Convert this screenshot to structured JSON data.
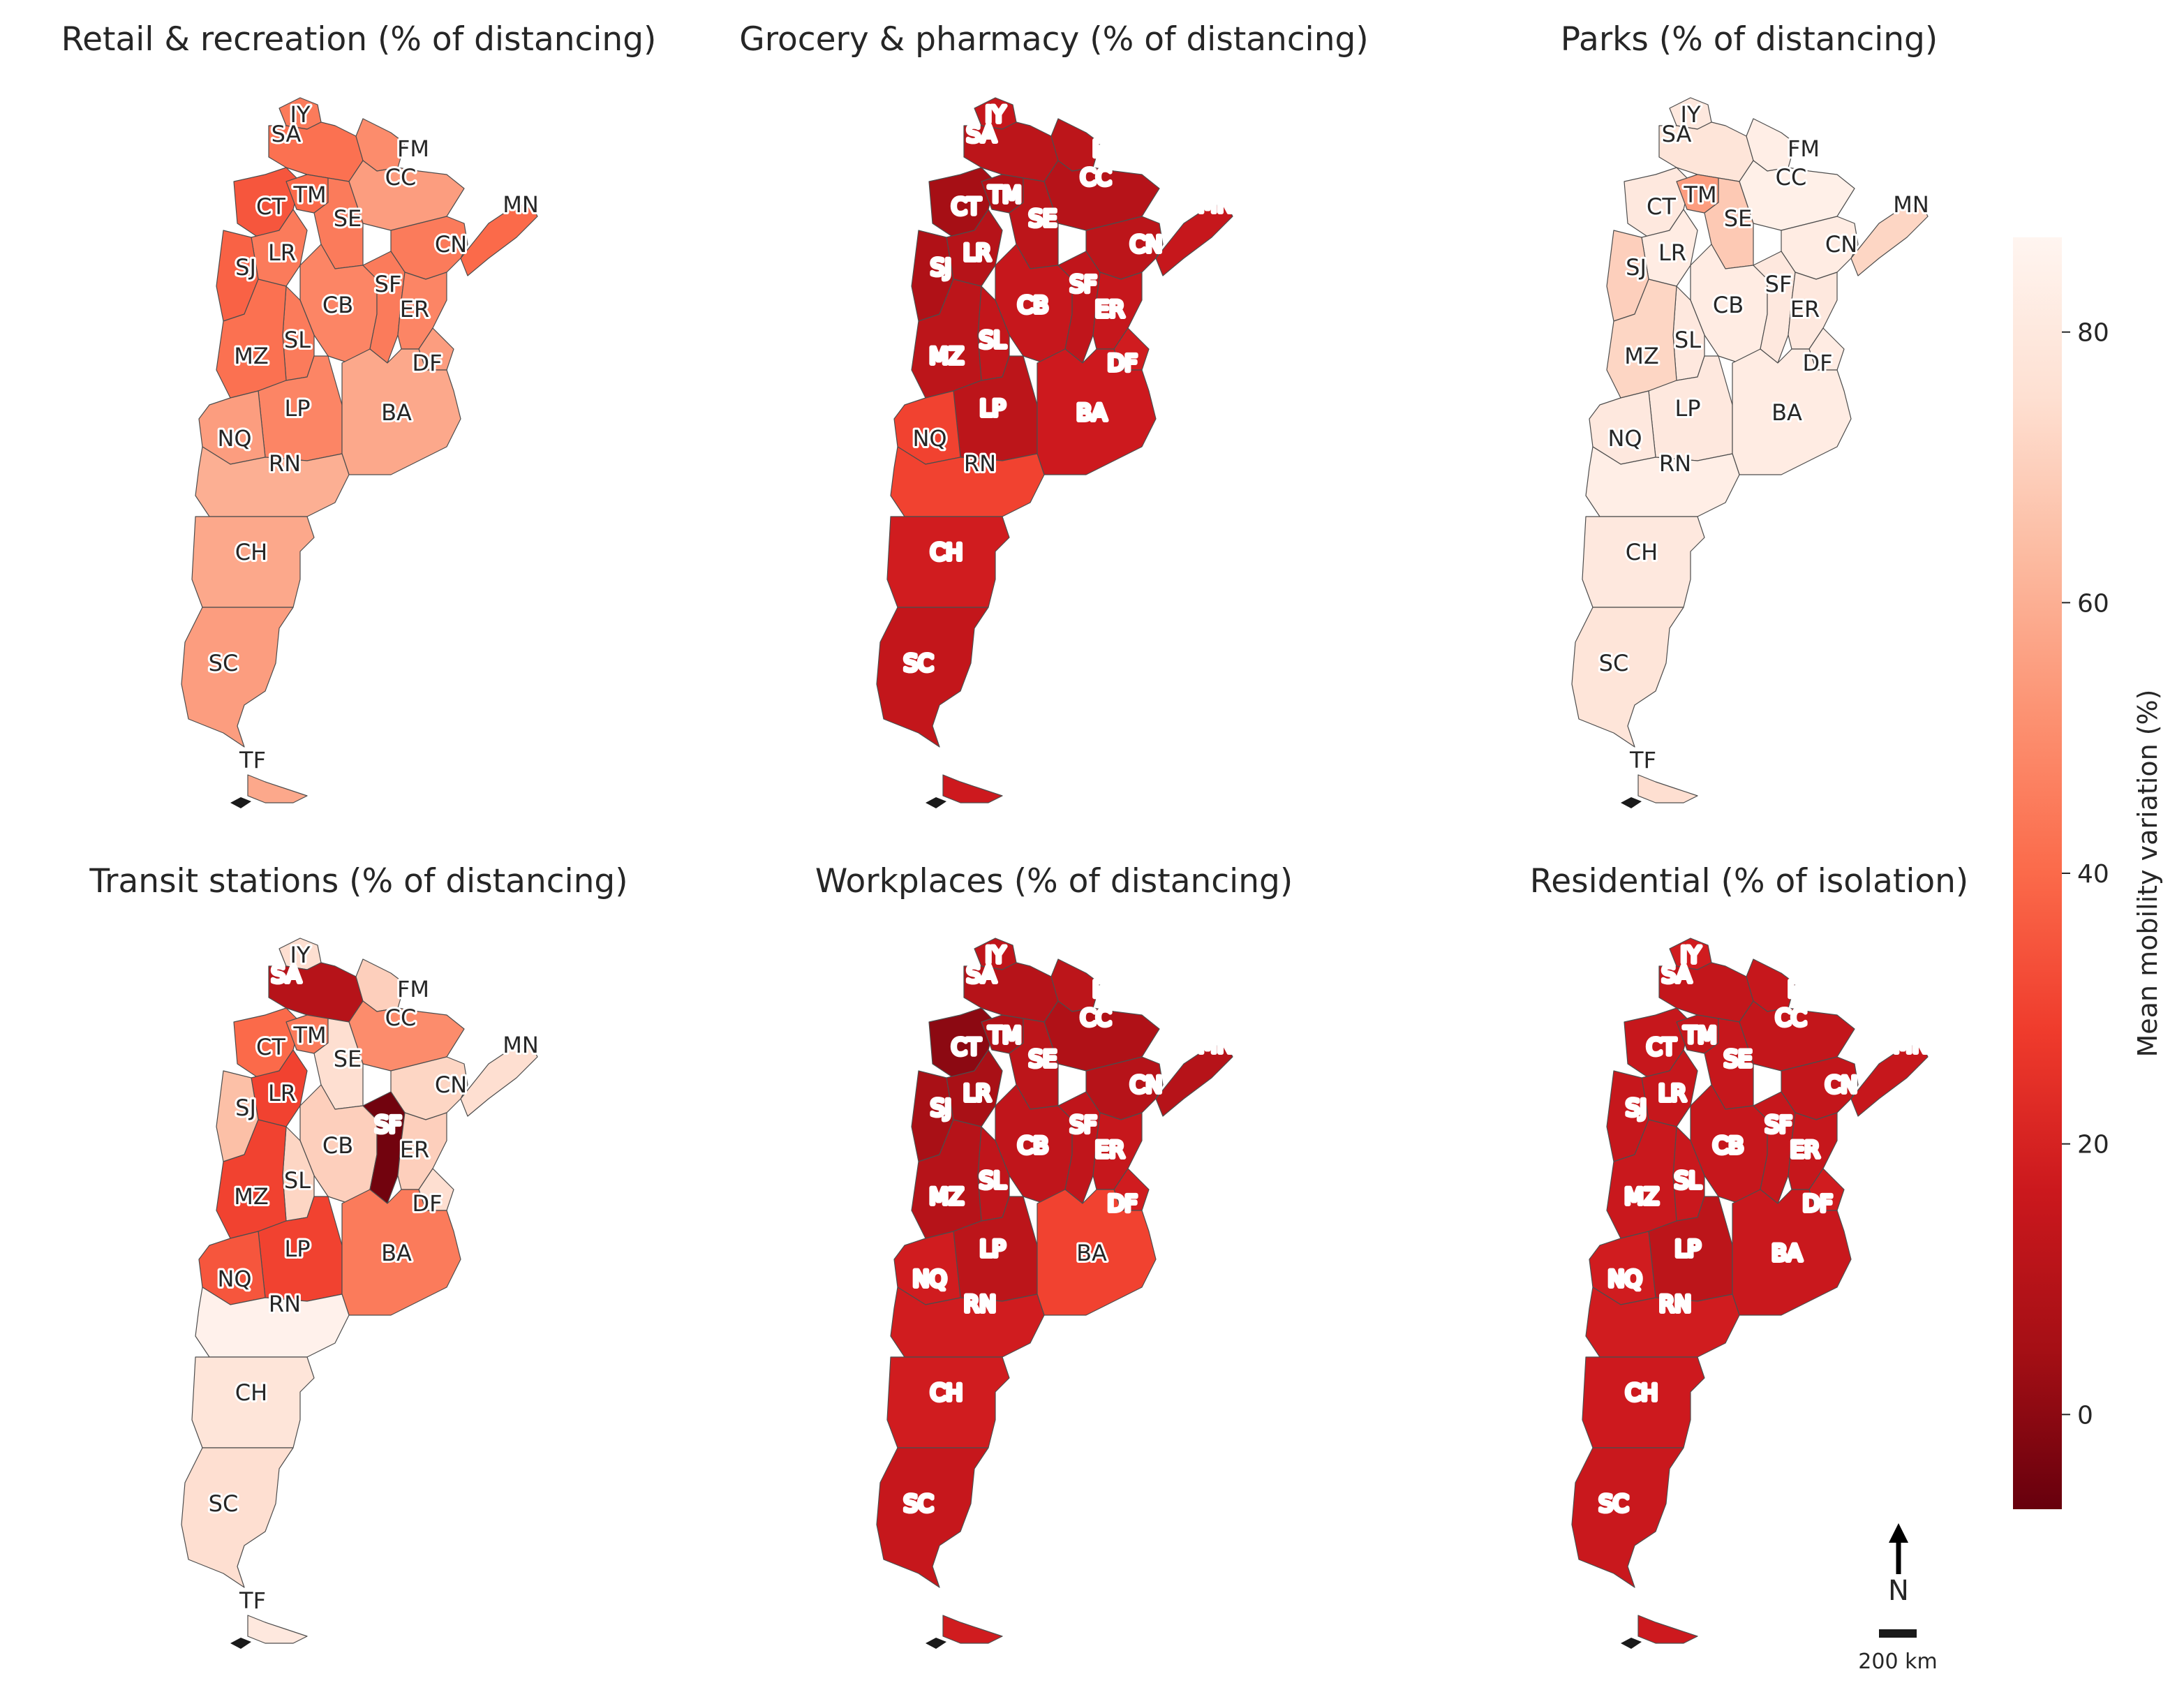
{
  "figure": {
    "panels": [
      {
        "title": "Retail & recreation (% of distancing)",
        "values": {
          "IY": 45,
          "SA": 42,
          "FM": 50,
          "CC": 55,
          "MN": 40,
          "CT": 35,
          "TM": 40,
          "SE": 45,
          "LR": 45,
          "SJ": 38,
          "CN": 45,
          "CB": 48,
          "SF": 45,
          "ER": 48,
          "SL": 45,
          "MZ": 42,
          "DF": 55,
          "LP": 48,
          "BA": 58,
          "NQ": 55,
          "RN": 60,
          "CH": 58,
          "SC": 55,
          "TF": 58
        }
      },
      {
        "title": "Grocery & pharmacy (% of distancing)",
        "values": {
          "IY": 15,
          "SA": 12,
          "FM": 12,
          "CC": 10,
          "MN": 15,
          "CT": 5,
          "TM": 8,
          "SE": 12,
          "LR": 10,
          "SJ": 8,
          "CN": 12,
          "CB": 15,
          "SF": 13,
          "ER": 15,
          "SL": 14,
          "MZ": 12,
          "DF": 18,
          "LP": 12,
          "BA": 17,
          "NQ": 30,
          "RN": 30,
          "CH": 18,
          "SC": 14,
          "TF": 17
        }
      },
      {
        "title": "Parks (% of distancing)",
        "values": {
          "IY": 80,
          "SA": 78,
          "FM": 83,
          "CC": 84,
          "MN": 72,
          "CT": 80,
          "TM": 55,
          "SE": 68,
          "LR": 82,
          "SJ": 70,
          "CN": 82,
          "CB": 82,
          "SF": 80,
          "ER": 80,
          "SL": 80,
          "MZ": 72,
          "DF": 82,
          "LP": 80,
          "BA": 82,
          "NQ": 80,
          "RN": 83,
          "CH": 80,
          "SC": 78,
          "TF": 75
        }
      },
      {
        "title": "Transit stations (% of distancing)",
        "values": {
          "IY": 75,
          "SA": 10,
          "FM": 70,
          "CC": 50,
          "MN": 75,
          "CT": 40,
          "TM": 45,
          "SE": 75,
          "LR": 30,
          "SJ": 65,
          "CN": 72,
          "CB": 70,
          "SF": -5,
          "ER": 70,
          "SL": 72,
          "MZ": 30,
          "DF": 75,
          "LP": 30,
          "BA": 45,
          "NQ": 35,
          "RN": 85,
          "CH": 78,
          "SC": 75,
          "TF": 80
        }
      },
      {
        "title": "Workplaces (% of distancing)",
        "values": {
          "IY": 13,
          "SA": 10,
          "FM": 12,
          "CC": 8,
          "MN": 10,
          "CT": 0,
          "TM": 8,
          "SE": 12,
          "LR": 6,
          "SJ": 6,
          "CN": 10,
          "CB": 13,
          "SF": 13,
          "ER": 15,
          "SL": 13,
          "MZ": 10,
          "DF": 18,
          "LP": 12,
          "BA": 30,
          "NQ": 18,
          "RN": 18,
          "CH": 18,
          "SC": 15,
          "TF": 18
        }
      },
      {
        "title": "Residential (% of isolation)",
        "values": {
          "IY": 18,
          "SA": 14,
          "FM": 15,
          "CC": 14,
          "MN": 15,
          "CT": 15,
          "TM": 14,
          "SE": 15,
          "LR": 15,
          "SJ": 15,
          "CN": 14,
          "CB": 15,
          "SF": 15,
          "ER": 15,
          "SL": 16,
          "MZ": 16,
          "DF": 18,
          "LP": 12,
          "BA": 16,
          "NQ": 18,
          "RN": 18,
          "CH": 17,
          "SC": 16,
          "TF": 17
        }
      }
    ],
    "region_labels": [
      "IY",
      "SA",
      "FM",
      "CC",
      "MN",
      "CT",
      "TM",
      "SE",
      "LR",
      "SJ",
      "CN",
      "CB",
      "SF",
      "ER",
      "SL",
      "MZ",
      "DF",
      "LP",
      "BA",
      "NQ",
      "RN",
      "CH",
      "SC",
      "TF"
    ],
    "colorbar": {
      "label": "Mean mobility variation (%)",
      "ticks": [
        80,
        60,
        40,
        20,
        0
      ],
      "range": [
        -7,
        87
      ],
      "colormap": "Reds_r",
      "colors": [
        "#67000d",
        "#a50f15",
        "#cb181d",
        "#ef3b2c",
        "#fb6a4a",
        "#fc9272",
        "#fcbba1",
        "#fee0d2",
        "#fff5f0"
      ]
    },
    "north_label": "N",
    "scale_label": "200 km"
  }
}
